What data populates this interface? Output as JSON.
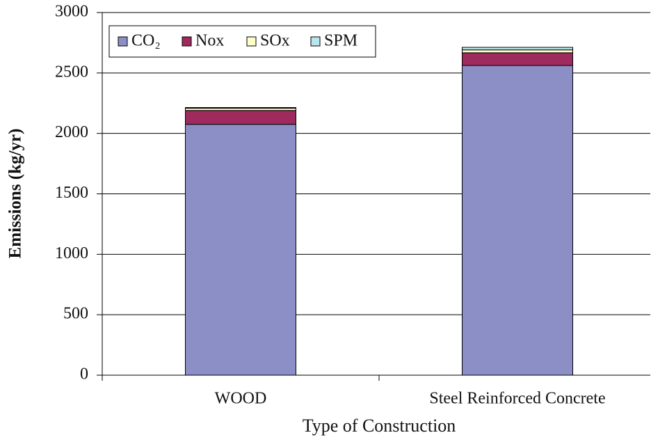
{
  "chart_data": {
    "type": "stacked_bar",
    "categories": [
      "WOOD",
      "Steel Reinforced Concrete"
    ],
    "series": [
      {
        "name": "CO₂",
        "color": "#8c8fc6",
        "values": [
          2075,
          2562
        ]
      },
      {
        "name": "Nox",
        "color": "#9e2a5e",
        "values": [
          115,
          105
        ]
      },
      {
        "name": "SOx",
        "color": "#ffffc8",
        "values": [
          18,
          24
        ]
      },
      {
        "name": "SPM",
        "color": "#b8e6ef",
        "values": [
          6,
          21
        ]
      }
    ],
    "ylabel": "Emissions (kg/yr)",
    "xlabel": "Type of Construction",
    "ylim": [
      0,
      3000
    ],
    "yticks": [
      0,
      500,
      1000,
      1500,
      2000,
      2500,
      3000
    ],
    "grid": true,
    "legend": "top-left"
  }
}
